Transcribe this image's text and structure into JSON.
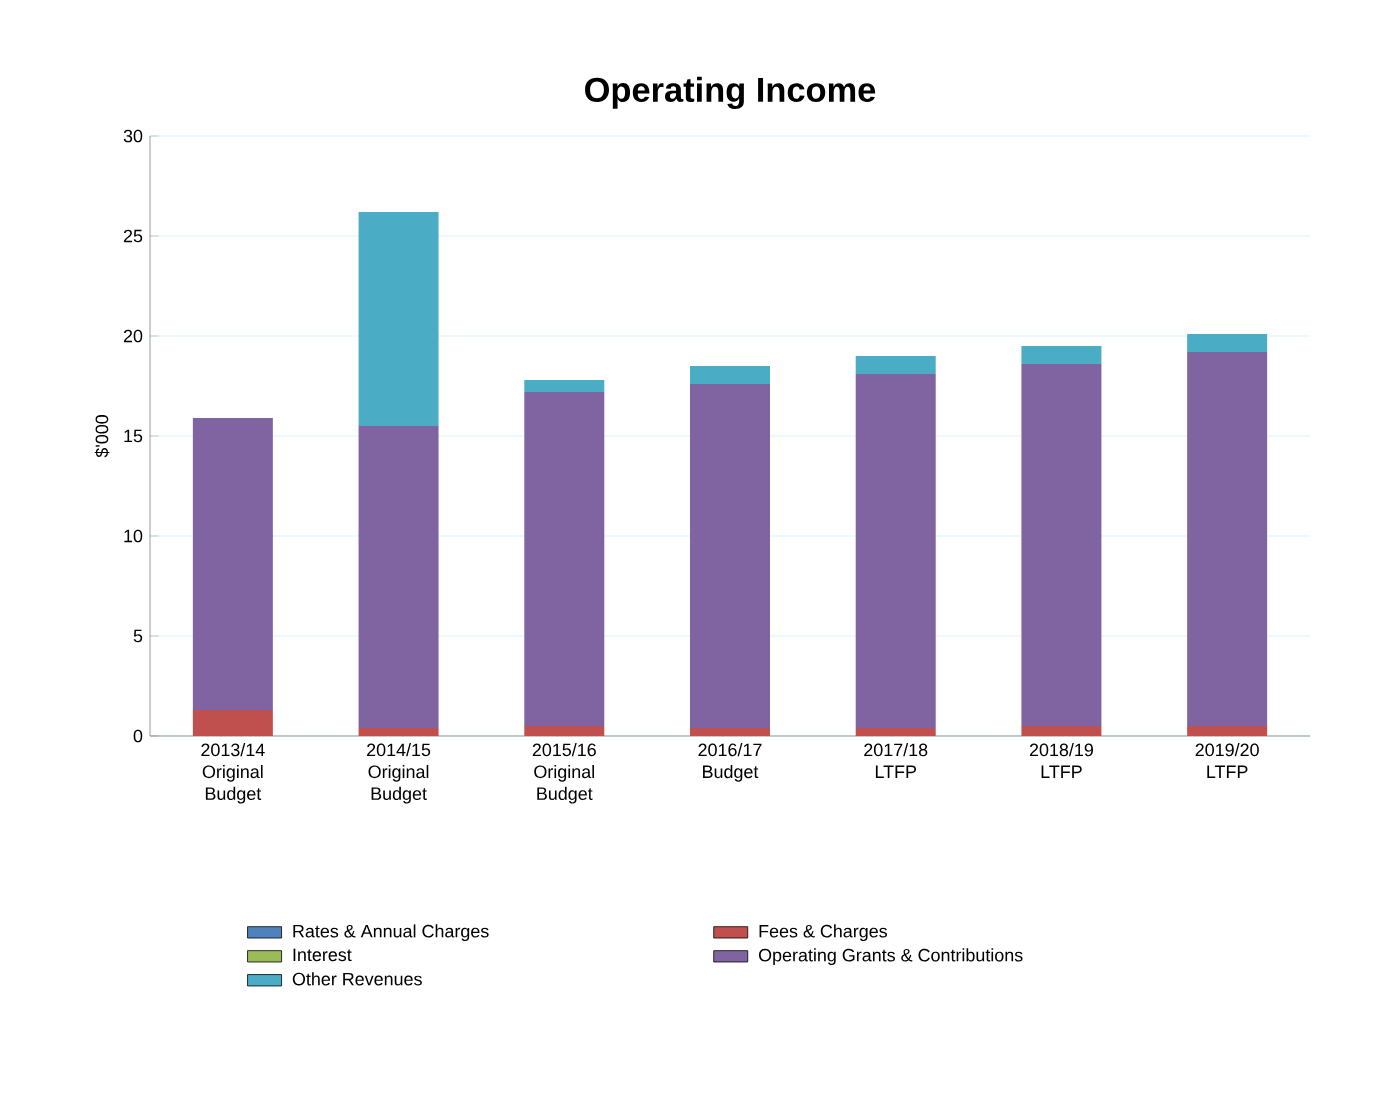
{
  "chart_data": {
    "type": "bar",
    "stacked": true,
    "title": "Operating Income",
    "ylabel": "$'000",
    "categories": [
      "2013/14\nOriginal\nBudget",
      "2014/15\nOriginal\nBudget",
      "2015/16\nOriginal\nBudget",
      "2016/17\nBudget",
      "2017/18\nLTFP",
      "2018/19\nLTFP",
      "2019/20\nLTFP"
    ],
    "series": [
      {
        "name": "Rates & Annual Charges",
        "color": "#4f81bd",
        "values": [
          0,
          0,
          0,
          0,
          0,
          0,
          0
        ]
      },
      {
        "name": "Fees & Charges",
        "color": "#c0504d",
        "values": [
          1.3,
          0.4,
          0.5,
          0.4,
          0.4,
          0.5,
          0.5
        ]
      },
      {
        "name": "Interest",
        "color": "#9bbb59",
        "values": [
          0,
          0,
          0,
          0,
          0,
          0,
          0
        ]
      },
      {
        "name": "Operating Grants & Contributions",
        "color": "#8064a2",
        "values": [
          14.6,
          15.1,
          16.7,
          17.2,
          17.7,
          18.1,
          18.7
        ]
      },
      {
        "name": "Other Revenues",
        "color": "#4bacc6",
        "values": [
          0,
          10.7,
          0.6,
          0.9,
          0.9,
          0.9,
          0.9
        ]
      }
    ],
    "ylim": [
      0,
      30
    ],
    "yticks": [
      0,
      5,
      10,
      15,
      20,
      25,
      30
    ],
    "grid": "y",
    "legend": "bottom"
  }
}
